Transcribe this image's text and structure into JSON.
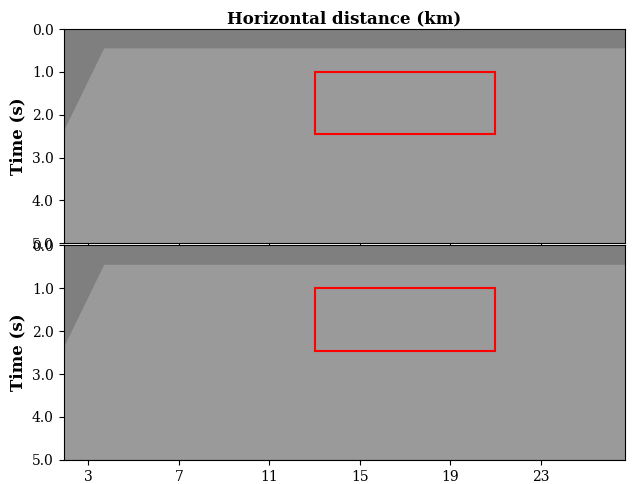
{
  "chart_data": [
    {
      "type": "seismic_section",
      "title": "Horizontal distance (km)",
      "ylabel": "Time (s)",
      "xlim": [
        1.9,
        26.75
      ],
      "ylim": [
        5.0,
        0.0
      ],
      "xticks": [
        3,
        7,
        11,
        15,
        19,
        23
      ],
      "yticks": [
        {
          "value": 0.0,
          "label": "0.0"
        },
        {
          "value": 1.0,
          "label": "1.0"
        },
        {
          "value": 2.0,
          "label": "2.0"
        },
        {
          "value": 3.0,
          "label": "3.0"
        },
        {
          "value": 4.0,
          "label": "4.0"
        },
        {
          "value": 5.0,
          "label": "5.0"
        }
      ],
      "tick_labels": "y",
      "data_boundary": {
        "x": [
          1.9,
          3.7,
          26.75
        ],
        "y": [
          2.4,
          0.45,
          0.45
        ]
      },
      "highlight_box": {
        "x": [
          13,
          21
        ],
        "y": [
          1.0,
          2.45
        ],
        "color": "red"
      }
    },
    {
      "type": "seismic_section",
      "ylabel": "Time (s)",
      "xlim": [
        1.9,
        26.75
      ],
      "ylim": [
        5.0,
        0.0
      ],
      "xticks": [
        3,
        7,
        11,
        15,
        19,
        23
      ],
      "yticks": [
        {
          "value": 0.0,
          "label": "0.0"
        },
        {
          "value": 1.0,
          "label": "1.0"
        },
        {
          "value": 2.0,
          "label": "2.0"
        },
        {
          "value": 3.0,
          "label": "3.0"
        },
        {
          "value": 4.0,
          "label": "4.0"
        },
        {
          "value": 5.0,
          "label": "5.0"
        }
      ],
      "data_boundary": {
        "x": [
          1.9,
          3.7,
          26.75
        ],
        "y": [
          2.4,
          0.45,
          0.45
        ]
      },
      "highlight_box": {
        "x": [
          13,
          21
        ],
        "y": [
          1.0,
          2.45
        ],
        "color": "red"
      }
    }
  ]
}
